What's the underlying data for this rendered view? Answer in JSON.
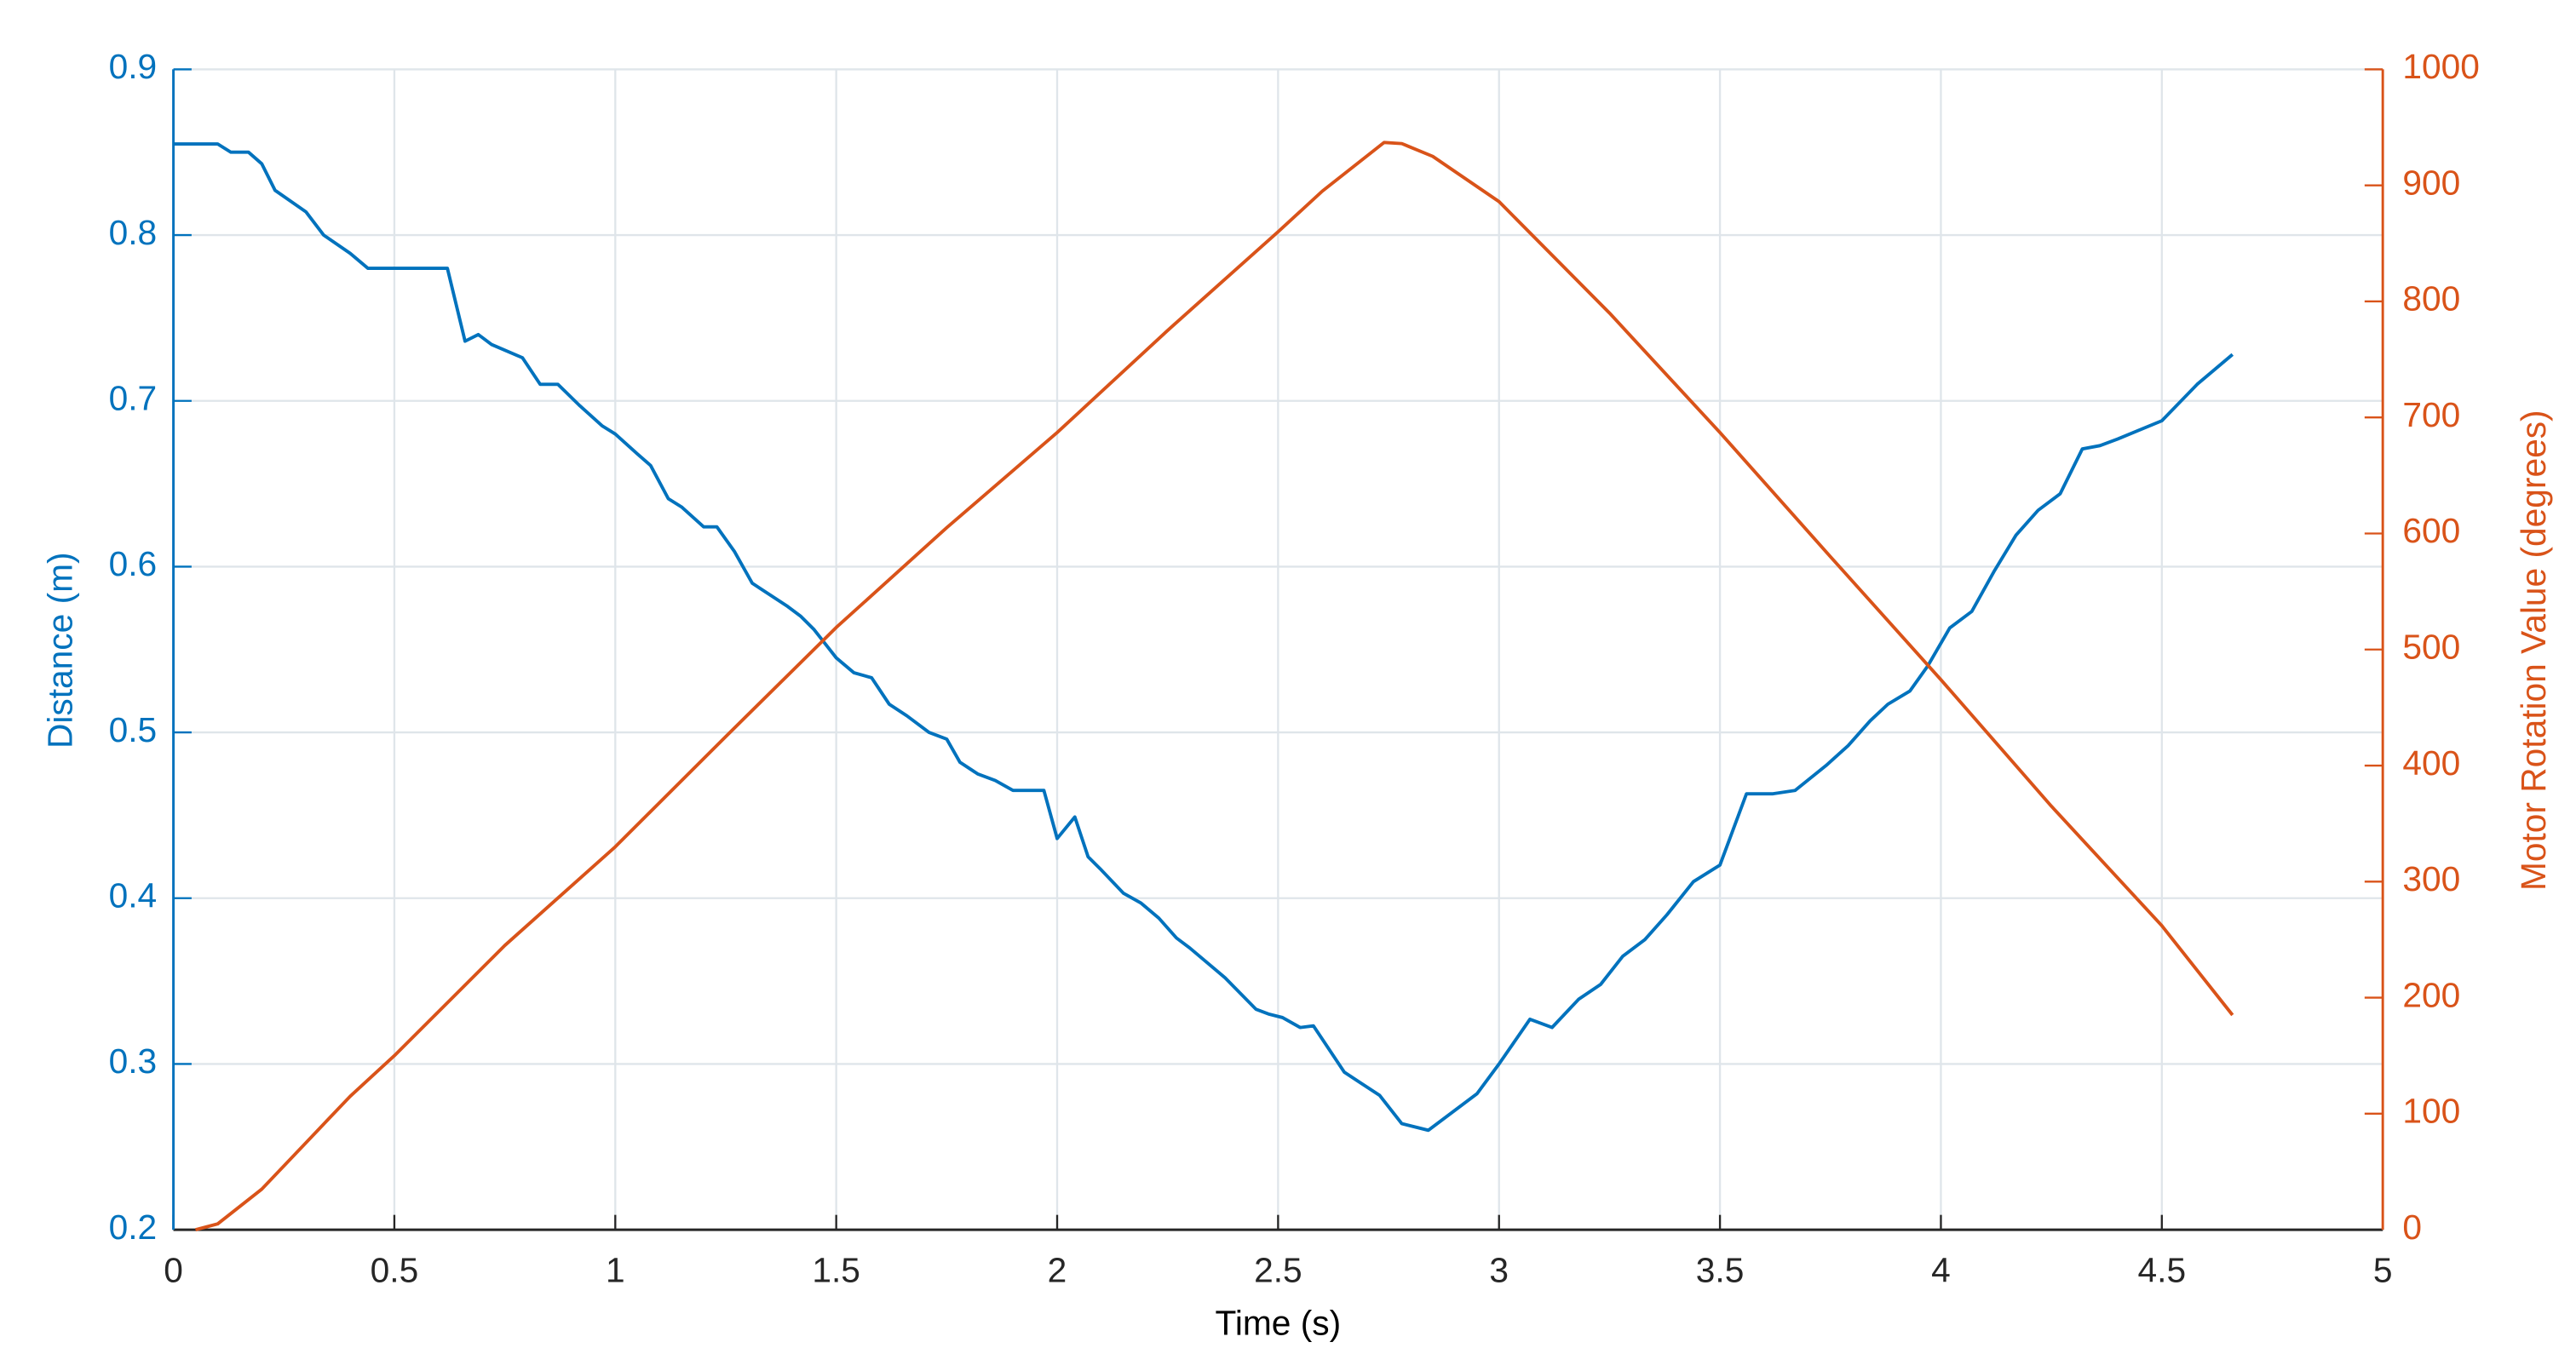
{
  "chart_data": {
    "type": "line",
    "xlabel": "Time (s)",
    "ylabel": "Distance (m)",
    "y2label": "Motor Rotation Value (degrees)",
    "xlim": [
      0,
      5
    ],
    "xticks": [
      0,
      0.5,
      1,
      1.5,
      2,
      2.5,
      3,
      3.5,
      4,
      4.5,
      5
    ],
    "ylim": [
      0.2,
      0.9
    ],
    "yticks": [
      0.2,
      0.3,
      0.4,
      0.5,
      0.6,
      0.7,
      0.8,
      0.9
    ],
    "y2lim": [
      0,
      1000
    ],
    "y2ticks": [
      0,
      100,
      200,
      300,
      400,
      500,
      600,
      700,
      800,
      900,
      1000
    ],
    "grid": true,
    "series": [
      {
        "color": "#0072bd",
        "axis": "y",
        "x": [
          0,
          0.1,
          0.13,
          0.17,
          0.2,
          0.23,
          0.3,
          0.34,
          0.4,
          0.44,
          0.62,
          0.66,
          0.69,
          0.72,
          0.79,
          0.83,
          0.87,
          0.92,
          0.97,
          1.0,
          1.05,
          1.08,
          1.12,
          1.15,
          1.2,
          1.23,
          1.27,
          1.31,
          1.39,
          1.42,
          1.45,
          1.5,
          1.54,
          1.58,
          1.62,
          1.66,
          1.71,
          1.75,
          1.78,
          1.82,
          1.86,
          1.9,
          1.97,
          2.0,
          2.04,
          2.07,
          2.1,
          2.15,
          2.19,
          2.23,
          2.27,
          2.3,
          2.38,
          2.45,
          2.48,
          2.51,
          2.55,
          2.58,
          2.65,
          2.73,
          2.78,
          2.84,
          2.95,
          3.0,
          3.07,
          3.12,
          3.18,
          3.23,
          3.28,
          3.33,
          3.38,
          3.44,
          3.5,
          3.56,
          3.62,
          3.67,
          3.74,
          3.79,
          3.84,
          3.88,
          3.93,
          3.97,
          4.02,
          4.07,
          4.12,
          4.17,
          4.22,
          4.27,
          4.32,
          4.36,
          4.4,
          4.5,
          4.58,
          4.66
        ],
        "values": [
          0.855,
          0.855,
          0.85,
          0.85,
          0.843,
          0.827,
          0.814,
          0.8,
          0.789,
          0.78,
          0.78,
          0.736,
          0.74,
          0.734,
          0.726,
          0.71,
          0.71,
          0.697,
          0.685,
          0.68,
          0.668,
          0.661,
          0.641,
          0.636,
          0.624,
          0.624,
          0.609,
          0.59,
          0.576,
          0.57,
          0.562,
          0.545,
          0.536,
          0.533,
          0.517,
          0.51,
          0.5,
          0.496,
          0.482,
          0.475,
          0.471,
          0.465,
          0.465,
          0.436,
          0.449,
          0.425,
          0.417,
          0.403,
          0.397,
          0.388,
          0.376,
          0.37,
          0.352,
          0.333,
          0.33,
          0.328,
          0.322,
          0.323,
          0.295,
          0.281,
          0.264,
          0.26,
          0.282,
          0.3,
          0.327,
          0.322,
          0.339,
          0.348,
          0.365,
          0.375,
          0.39,
          0.41,
          0.42,
          0.463,
          0.463,
          0.465,
          0.48,
          0.492,
          0.507,
          0.517,
          0.525,
          0.54,
          0.563,
          0.573,
          0.597,
          0.619,
          0.634,
          0.644,
          0.671,
          0.673,
          0.677,
          0.688,
          0.71,
          0.728
        ]
      },
      {
        "color": "#d95319",
        "axis": "y2",
        "x": [
          0.05,
          0.1,
          0.2,
          0.3,
          0.4,
          0.5,
          0.75,
          1.0,
          1.25,
          1.5,
          1.75,
          2.0,
          2.25,
          2.5,
          2.6,
          2.74,
          2.78,
          2.85,
          3.0,
          3.25,
          3.5,
          3.75,
          4.0,
          4.25,
          4.5,
          4.66
        ],
        "values": [
          0,
          5,
          35,
          75,
          115,
          150,
          245,
          330,
          425,
          519,
          605,
          687,
          775,
          860,
          895,
          937,
          936,
          925,
          886,
          790,
          687,
          580,
          474,
          365,
          262,
          185
        ]
      }
    ]
  }
}
